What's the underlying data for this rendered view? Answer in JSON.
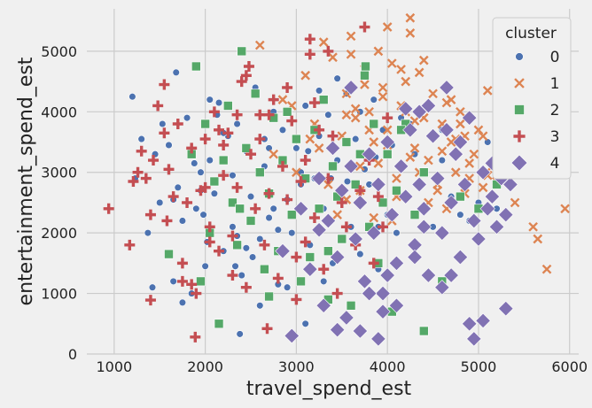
{
  "chart_data": {
    "type": "scatter",
    "title": "",
    "xlabel": "travel_spend_est",
    "ylabel": "entertainment_spend_est",
    "xlim": [
      700,
      6100
    ],
    "ylim": [
      0,
      5700
    ],
    "x_ticks": [
      1000,
      2000,
      3000,
      4000,
      5000,
      6000
    ],
    "y_ticks": [
      0,
      1000,
      2000,
      3000,
      4000,
      5000
    ],
    "grid": true,
    "legend": {
      "title": "cluster",
      "placement": "upper right"
    },
    "series": [
      {
        "name": "0",
        "marker": "circle",
        "color": "#4c72b0",
        "x": [
          1200,
          1230,
          1300,
          1370,
          1420,
          1450,
          1500,
          1530,
          1600,
          1650,
          1680,
          1700,
          1750,
          1800,
          1850,
          1900,
          1950,
          2000,
          2050,
          2100,
          2150,
          2200,
          2250,
          2300,
          2350,
          2400,
          2450,
          2500,
          2550,
          2600,
          2650,
          2700,
          2750,
          2800,
          2850,
          2900,
          2950,
          3000,
          3050,
          3100,
          3150,
          3200,
          3250,
          3300,
          3350,
          3400,
          3450,
          3500,
          3550,
          3600,
          3650,
          3700,
          3750,
          3800,
          3850,
          3900,
          3950,
          4000,
          4050,
          4100,
          4150,
          4200,
          4300,
          4400,
          4500,
          4600,
          4700,
          4800,
          4900,
          5000,
          5100,
          5200,
          5300,
          2380,
          2150,
          1750,
          2050,
          2600,
          3300,
          2900,
          3700,
          3100,
          2700,
          2300,
          1950,
          3900,
          4250,
          4600,
          2450,
          2800,
          3450,
          3050,
          2350,
          1650,
          1880,
          2130,
          2650,
          3250,
          3560,
          4100,
          1980,
          2200,
          2520,
          2750,
          3130,
          3380,
          3610,
          3870,
          2020,
          2330
        ],
        "y": [
          4250,
          2900,
          3550,
          2000,
          1100,
          3300,
          2500,
          3800,
          3450,
          1200,
          4650,
          2750,
          2200,
          3900,
          1000,
          2400,
          3000,
          1450,
          3200,
          2650,
          4150,
          1700,
          3600,
          2100,
          3800,
          1300,
          3350,
          2600,
          4400,
          1900,
          3100,
          2250,
          4000,
          1150,
          3700,
          2550,
          2000,
          3400,
          3000,
          4100,
          1800,
          2900,
          3600,
          2400,
          3950,
          1500,
          3200,
          2700,
          4300,
          2100,
          3550,
          1650,
          3050,
          2800,
          4200,
          1400,
          3700,
          2300,
          3450,
          2000,
          3900,
          2600,
          3300,
          3000,
          2100,
          3700,
          2600,
          2300,
          2200,
          2500,
          3500,
          2400,
          2900,
          330,
          510,
          850,
          4200,
          800,
          1200,
          1100,
          4000,
          500,
          3400,
          2950,
          2700,
          2100,
          3800,
          3200,
          1750,
          2050,
          4550,
          2800,
          1950,
          2550,
          3150,
          3950,
          3550,
          4350,
          2850,
          2700,
          2300,
          3650,
          1600,
          2400,
          3350,
          2900,
          3100,
          3250,
          1850,
          1450
        ]
      },
      {
        "name": "1",
        "marker": "x",
        "color": "#dd8452",
        "x": [
          2600,
          2750,
          2850,
          3000,
          3100,
          3200,
          3300,
          3350,
          3400,
          3500,
          3550,
          3600,
          3650,
          3700,
          3750,
          3800,
          3850,
          3900,
          3950,
          4000,
          4050,
          4100,
          4150,
          4200,
          4250,
          4300,
          4350,
          4400,
          4450,
          4500,
          4550,
          4600,
          4650,
          4700,
          4750,
          4800,
          4850,
          4900,
          4950,
          5000,
          5050,
          5100,
          5150,
          5200,
          5250,
          5300,
          5400,
          5500,
          5600,
          5650,
          5750,
          5950,
          4000,
          4250,
          4300,
          3800,
          3650,
          4750,
          4900,
          5200,
          3450,
          3550,
          4550,
          4650,
          4850,
          5100,
          5350,
          3250,
          3150,
          2950,
          4050,
          4450,
          4200,
          3850,
          3700,
          4100,
          4350,
          4600,
          4800,
          3950,
          5050,
          3550,
          3750,
          4150,
          4400,
          4700,
          4000,
          4250,
          3600,
          3900
        ],
        "y": [
          5100,
          3300,
          4200,
          3000,
          4600,
          3800,
          5150,
          2800,
          4900,
          3600,
          4300,
          5250,
          3900,
          3100,
          4700,
          4000,
          3500,
          5000,
          4400,
          3700,
          4800,
          2900,
          4100,
          4500,
          5550,
          3400,
          4650,
          3900,
          3200,
          4300,
          2700,
          3800,
          4150,
          3500,
          3000,
          4000,
          3600,
          2900,
          3300,
          3700,
          2750,
          4350,
          3100,
          3200,
          3900,
          3000,
          2500,
          3500,
          2100,
          1900,
          1400,
          2400,
          3450,
          3250,
          3850,
          3700,
          4050,
          3550,
          3150,
          2850,
          2300,
          2550,
          2800,
          2400,
          2650,
          2950,
          3100,
          3400,
          3550,
          4100,
          2200,
          2500,
          4000,
          2250,
          2700,
          2600,
          3000,
          3350,
          3800,
          4250,
          3600,
          3950,
          4450,
          4700,
          4850,
          4200,
          5400,
          5300,
          4950,
          3150
        ]
      },
      {
        "name": "2",
        "marker": "square",
        "color": "#55a868",
        "x": [
          1900,
          1950,
          2000,
          2050,
          2100,
          2150,
          2200,
          2250,
          2300,
          2350,
          2400,
          2450,
          2500,
          2550,
          2600,
          2650,
          2700,
          2750,
          2800,
          2850,
          2900,
          2950,
          3000,
          3050,
          3100,
          3150,
          3200,
          3250,
          3300,
          3350,
          3400,
          3450,
          3500,
          3550,
          3600,
          3650,
          3700,
          3750,
          3800,
          3850,
          3900,
          3950,
          4000,
          4050,
          4100,
          4200,
          4300,
          4400,
          4600,
          4800,
          5000,
          5200,
          1600,
          1850,
          2380,
          3760,
          4150,
          4400,
          3350,
          2700
        ],
        "y": [
          4750,
          1200,
          3800,
          2000,
          2850,
          500,
          3200,
          4100,
          2500,
          1800,
          5000,
          3400,
          2200,
          4300,
          3000,
          1400,
          2650,
          3900,
          1700,
          3200,
          4000,
          2300,
          3550,
          1200,
          2900,
          1600,
          3700,
          2400,
          4200,
          900,
          3100,
          2600,
          1900,
          3500,
          800,
          2800,
          3300,
          4600,
          2100,
          3800,
          1500,
          2500,
          3300,
          700,
          2700,
          3800,
          2300,
          3000,
          1200,
          2600,
          2400,
          2800,
          1650,
          3300,
          2400,
          4750,
          3700,
          380,
          1700,
          950
        ]
      },
      {
        "name": "3",
        "marker": "plus",
        "color": "#c44e52",
        "x": [
          940,
          1170,
          1210,
          1260,
          1300,
          1350,
          1400,
          1430,
          1480,
          1550,
          1580,
          1600,
          1650,
          1700,
          1750,
          1800,
          1850,
          1900,
          1950,
          2000,
          2050,
          2100,
          2150,
          2200,
          2250,
          2300,
          2350,
          2400,
          2450,
          2500,
          2550,
          2600,
          2650,
          2700,
          2750,
          2800,
          2850,
          2900,
          2950,
          3000,
          3050,
          3100,
          3150,
          3200,
          3250,
          3300,
          3350,
          3400,
          3450,
          3500,
          3550,
          3600,
          3650,
          3700,
          3750,
          3800,
          3850,
          3900,
          3950,
          4000,
          1400,
          1890,
          2680,
          3200,
          2150,
          2450,
          1750,
          3150,
          2350,
          2900,
          2000,
          3350,
          1550,
          2050,
          2600,
          2300,
          3000,
          2200,
          1850,
          2700,
          3100,
          2480
        ],
        "y": [
          2400,
          1800,
          2850,
          3000,
          3350,
          2900,
          2300,
          3200,
          4100,
          3650,
          2200,
          3050,
          2600,
          3800,
          1500,
          2500,
          3400,
          1000,
          2700,
          3550,
          2100,
          4000,
          1700,
          2950,
          3650,
          1300,
          2750,
          4500,
          1100,
          3300,
          2400,
          3950,
          1800,
          2650,
          4200,
          1250,
          3100,
          2550,
          3850,
          1600,
          2850,
          3200,
          5200,
          2250,
          3700,
          1400,
          2900,
          3600,
          1000,
          2500,
          2100,
          3100,
          1800,
          2700,
          5400,
          3200,
          1500,
          2600,
          2100,
          3900,
          890,
          280,
          420,
          4150,
          3700,
          4600,
          1200,
          4950,
          3950,
          4400,
          2750,
          5000,
          4450,
          1850,
          3550,
          1950,
          900,
          3450,
          1150,
          3950,
          1850,
          4750
        ]
      },
      {
        "name": "4",
        "marker": "diamond",
        "color": "#8172b3",
        "x": [
          2850,
          2950,
          3050,
          3150,
          3250,
          3300,
          3350,
          3400,
          3450,
          3500,
          3550,
          3600,
          3650,
          3700,
          3750,
          3800,
          3850,
          3900,
          3950,
          4000,
          4050,
          4100,
          4150,
          4200,
          4250,
          4300,
          4350,
          4400,
          4450,
          4500,
          4550,
          4600,
          4650,
          4700,
          4750,
          4800,
          4850,
          4900,
          4950,
          5000,
          5050,
          5100,
          5150,
          5200,
          5250,
          5300,
          5350,
          4400,
          4300,
          4000,
          3800,
          4600,
          4900,
          5300,
          3700,
          3900,
          4100,
          4700,
          4950,
          5050,
          3600,
          4450,
          4200,
          4800,
          5150,
          3950,
          4350,
          4650,
          3450,
          3250
        ],
        "y": [
          1700,
          300,
          2400,
          1400,
          2900,
          800,
          2200,
          3400,
          1600,
          2700,
          600,
          3100,
          1900,
          2500,
          1200,
          3300,
          2000,
          2800,
          1000,
          3500,
          2300,
          1500,
          3100,
          2600,
          3700,
          1800,
          4000,
          2400,
          1300,
          3600,
          2900,
          2000,
          4400,
          2500,
          3300,
          1600,
          2800,
          3900,
          2200,
          1900,
          3000,
          2400,
          2600,
          2100,
          2900,
          2300,
          2800,
          2100,
          1600,
          1300,
          1000,
          1100,
          500,
          750,
          380,
          250,
          800,
          1300,
          250,
          550,
          4400,
          4100,
          4050,
          3500,
          3150,
          700,
          2800,
          3700,
          400,
          2050
        ]
      }
    ]
  }
}
